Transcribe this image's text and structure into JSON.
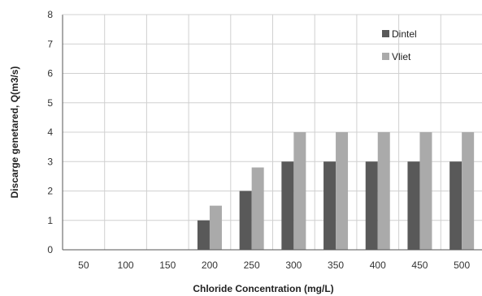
{
  "chart_data": {
    "type": "bar",
    "title": "",
    "xlabel": "Chloride Concentration (mg/L)",
    "ylabel": "Discarge genetared, Q(m3/s)",
    "categories": [
      "50",
      "100",
      "150",
      "200",
      "250",
      "300",
      "350",
      "400",
      "450",
      "500"
    ],
    "series": [
      {
        "name": "Dintel",
        "color": "#595959",
        "values": [
          0,
          0,
          0,
          1,
          2,
          3,
          3,
          3,
          3,
          3
        ]
      },
      {
        "name": "Vliet",
        "color": "#aaaaaa",
        "values": [
          0,
          0,
          0,
          1.5,
          2.8,
          4,
          4,
          4,
          4,
          4
        ]
      }
    ],
    "ylim": [
      0,
      8
    ],
    "yticks": [
      0,
      1,
      2,
      3,
      4,
      5,
      6,
      7,
      8
    ],
    "grid": true,
    "legend_position": "top-right"
  }
}
